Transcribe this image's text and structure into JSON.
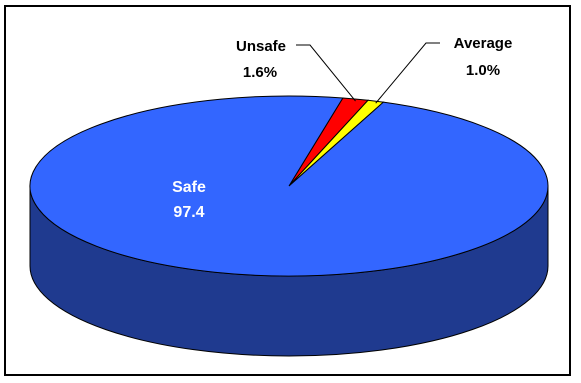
{
  "chart_data": {
    "type": "pie",
    "style": "3d",
    "start_angle_deg": 78,
    "slices": [
      {
        "name": "Safe",
        "value_label": "97.4",
        "value": 97.4,
        "color": "#3366FF"
      },
      {
        "name": "Unsafe",
        "value_label": "1.6%",
        "value": 1.6,
        "color": "#FF0000"
      },
      {
        "name": "Average",
        "value_label": "1.0%",
        "value": 1.0,
        "color": "#FFFF00"
      }
    ],
    "side_color": "#1F3A8F",
    "outline_color": "#000000"
  }
}
